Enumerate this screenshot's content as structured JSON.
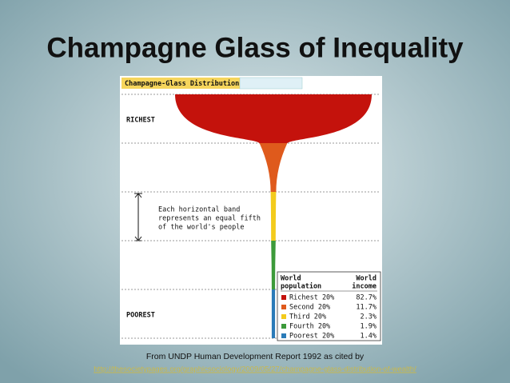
{
  "title": "Champagne Glass of Inequality",
  "chart_data": {
    "type": "champagne",
    "title": "Champagne-Glass Distribution",
    "top_label": "RICHEST",
    "bottom_label": "POOREST",
    "annotation": [
      "Each horizontal band",
      "represents an equal fifth",
      "of the world's people"
    ],
    "legend_headers": [
      [
        "World",
        "population"
      ],
      [
        "World",
        "income"
      ]
    ],
    "categories": [
      "Richest 20%",
      "Second 20%",
      "Third 20%",
      "Fourth 20%",
      "Poorest 20%"
    ],
    "values": [
      82.7,
      11.7,
      2.3,
      1.9,
      1.4
    ],
    "value_labels": [
      "82.7%",
      "11.7%",
      "2.3%",
      "1.9%",
      "1.4%"
    ],
    "colors": [
      "#c4120c",
      "#df5a1c",
      "#f3cb1c",
      "#3c9a3a",
      "#2a7bb8"
    ]
  },
  "source": {
    "text": "From UNDP Human Development Report 1992 as cited by",
    "url": "http://thesocietypages.org/graphicsociology/2009/05/27/champagne-glass-distribution-of-wealth/"
  }
}
